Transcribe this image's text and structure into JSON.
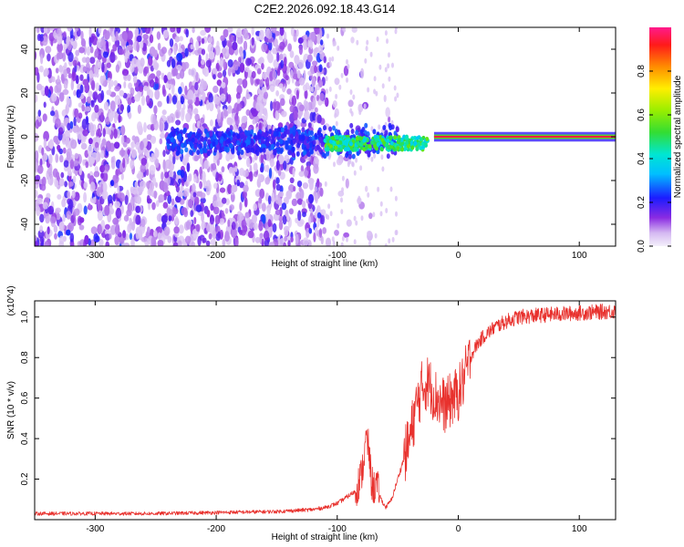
{
  "title": "C2E2.2026.092.18.43.G14",
  "chart_data": [
    {
      "type": "heatmap",
      "title": "C2E2.2026.092.18.43.G14",
      "xlabel": "Height of straight line (km)",
      "ylabel": "Frequency (Hz)",
      "xlim": [
        -350,
        130
      ],
      "ylim": [
        -50,
        50
      ],
      "xticks": [
        -300,
        -200,
        -100,
        0,
        100
      ],
      "xtick_labels": [
        "-300",
        "-200",
        "-100",
        "0",
        "100"
      ],
      "yticks": [
        -40,
        -20,
        0,
        20,
        40
      ],
      "ytick_labels": [
        "-40",
        "-20",
        "0",
        "20",
        "40"
      ],
      "colorbar": {
        "label": "Normalized spectral amplitude",
        "range": [
          0,
          1
        ],
        "ticks": [
          0.0,
          0.2,
          0.4,
          0.6,
          0.8
        ],
        "tick_labels": [
          "0.0",
          "0.2",
          "0.4",
          "0.6",
          "0.8"
        ]
      },
      "features": [
        {
          "description": "diffuse low-amplitude scatter",
          "x_range": [
            -350,
            -110
          ],
          "freq_range": [
            -50,
            50
          ],
          "amplitude": 0.15
        },
        {
          "description": "band near 0 Hz",
          "x_range": [
            -240,
            -50
          ],
          "freq_center": -2,
          "amplitude": 0.25
        },
        {
          "description": "green/cyan band",
          "x_range": [
            -110,
            -25
          ],
          "freq_center": -3,
          "amplitude": 0.45
        },
        {
          "description": "red line at 0 Hz",
          "x_range": [
            -20,
            130
          ],
          "freq_center": 0,
          "amplitude": 0.95
        }
      ]
    },
    {
      "type": "line",
      "xlabel": "Height of straight line (km)",
      "ylabel": "SNR (10 * v/v)",
      "scale_label": "(x10^4)",
      "xlim": [
        -350,
        130
      ],
      "ylim": [
        0,
        1.08
      ],
      "xticks": [
        -300,
        -200,
        -100,
        0,
        100
      ],
      "xtick_labels": [
        "-300",
        "-200",
        "-100",
        "0",
        "100"
      ],
      "yticks": [
        0.2,
        0.4,
        0.6,
        0.8,
        1.0
      ],
      "ytick_labels": [
        "0.2",
        "0.4",
        "0.6",
        "0.8",
        "1.0"
      ],
      "series": [
        {
          "name": "SNR",
          "color": "#e8312d",
          "x": [
            -350,
            -300,
            -250,
            -200,
            -150,
            -120,
            -110,
            -100,
            -95,
            -90,
            -85,
            -80,
            -78,
            -76,
            -74,
            -72,
            -70,
            -68,
            -65,
            -62,
            -60,
            -55,
            -50,
            -45,
            -40,
            -35,
            -30,
            -25,
            -20,
            -15,
            -10,
            -5,
            0,
            5,
            10,
            15,
            20,
            30,
            40,
            50,
            70,
            100,
            130
          ],
          "y": [
            0.03,
            0.03,
            0.03,
            0.035,
            0.04,
            0.05,
            0.06,
            0.08,
            0.1,
            0.12,
            0.14,
            0.22,
            0.3,
            0.4,
            0.35,
            0.2,
            0.15,
            0.18,
            0.12,
            0.08,
            0.06,
            0.1,
            0.2,
            0.3,
            0.4,
            0.55,
            0.65,
            0.68,
            0.62,
            0.58,
            0.56,
            0.6,
            0.62,
            0.7,
            0.8,
            0.86,
            0.9,
            0.95,
            0.98,
            1.0,
            1.01,
            1.02,
            1.03
          ]
        }
      ]
    }
  ]
}
